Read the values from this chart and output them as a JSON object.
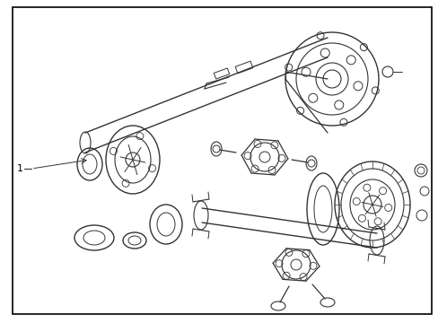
{
  "background_color": "#ffffff",
  "border_color": "#000000",
  "line_color": "#333333",
  "label_text": "1",
  "fig_width": 4.89,
  "fig_height": 3.6,
  "dpi": 100
}
